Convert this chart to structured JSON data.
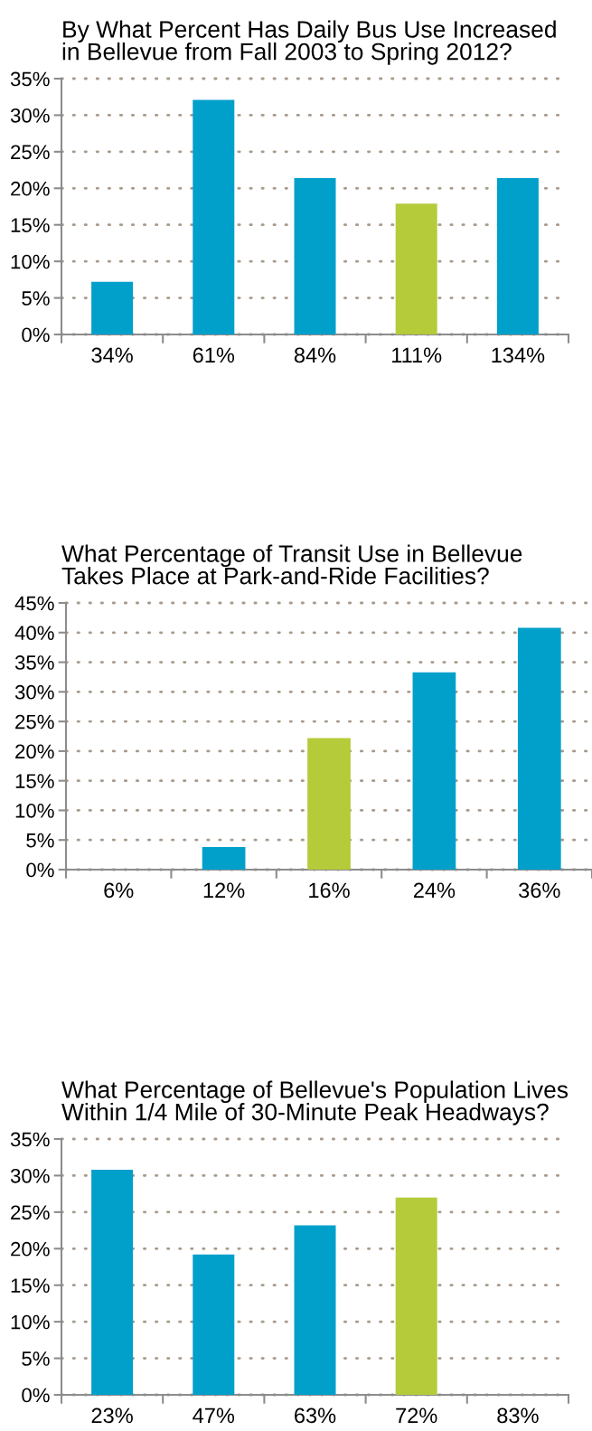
{
  "chart_data": [
    {
      "type": "bar",
      "title": "By What Percent Has Daily Bus Use Increased\nin Bellevue from Fall 2003 to Spring 2012?",
      "categories": [
        "34%",
        "61%",
        "84%",
        "111%",
        "134%"
      ],
      "values": [
        7.2,
        32.1,
        21.4,
        17.9,
        21.4
      ],
      "colors": [
        "#00a0cb",
        "#00a0cb",
        "#00a0cb",
        "#b5cb3a",
        "#00a0cb"
      ],
      "ylim": [
        0,
        35
      ],
      "yticks": [
        {
          "value": 0,
          "label": "0%"
        },
        {
          "value": 5,
          "label": "5%"
        },
        {
          "value": 10,
          "label": "10%"
        },
        {
          "value": 15,
          "label": "15%"
        },
        {
          "value": 20,
          "label": "20%"
        },
        {
          "value": 25,
          "label": "25%"
        },
        {
          "value": 30,
          "label": "30%"
        },
        {
          "value": 35,
          "label": "35%"
        }
      ],
      "grid": "y"
    },
    {
      "type": "bar",
      "title": "What Percentage of Transit Use in Bellevue\nTakes Place at Park-and-Ride Facilities?",
      "categories": [
        "6%",
        "12%",
        "16%",
        "24%",
        "36%"
      ],
      "values": [
        null,
        3.8,
        22.2,
        33.3,
        40.8
      ],
      "colors": [
        "#00a0cb",
        "#00a0cb",
        "#b5cb3a",
        "#00a0cb",
        "#00a0cb"
      ],
      "ylim": [
        0,
        45
      ],
      "yticks": [
        {
          "value": 0,
          "label": "0%"
        },
        {
          "value": 5,
          "label": "5%"
        },
        {
          "value": 10,
          "label": "10%"
        },
        {
          "value": 15,
          "label": "15%"
        },
        {
          "value": 20,
          "label": "20%"
        },
        {
          "value": 25,
          "label": "25%"
        },
        {
          "value": 30,
          "label": "30%"
        },
        {
          "value": 35,
          "label": "35%"
        },
        {
          "value": 40,
          "label": "40%"
        },
        {
          "value": 45,
          "label": "45%"
        }
      ],
      "grid": "y"
    },
    {
      "type": "bar",
      "title": "What Percentage of Bellevue's Population Lives\nWithin 1/4 Mile of 30-Minute Peak Headways?",
      "categories": [
        "23%",
        "47%",
        "63%",
        "72%",
        "83%"
      ],
      "values": [
        30.8,
        19.2,
        23.2,
        27.0,
        null
      ],
      "colors": [
        "#00a0cb",
        "#00a0cb",
        "#00a0cb",
        "#b5cb3a",
        "#00a0cb"
      ],
      "ylim": [
        0,
        35
      ],
      "yticks": [
        {
          "value": 0,
          "label": "0%"
        },
        {
          "value": 5,
          "label": "5%"
        },
        {
          "value": 10,
          "label": "10%"
        },
        {
          "value": 15,
          "label": "15%"
        },
        {
          "value": 20,
          "label": "20%"
        },
        {
          "value": 25,
          "label": "25%"
        },
        {
          "value": 30,
          "label": "30%"
        },
        {
          "value": 35,
          "label": "35%"
        }
      ],
      "grid": "y"
    }
  ]
}
